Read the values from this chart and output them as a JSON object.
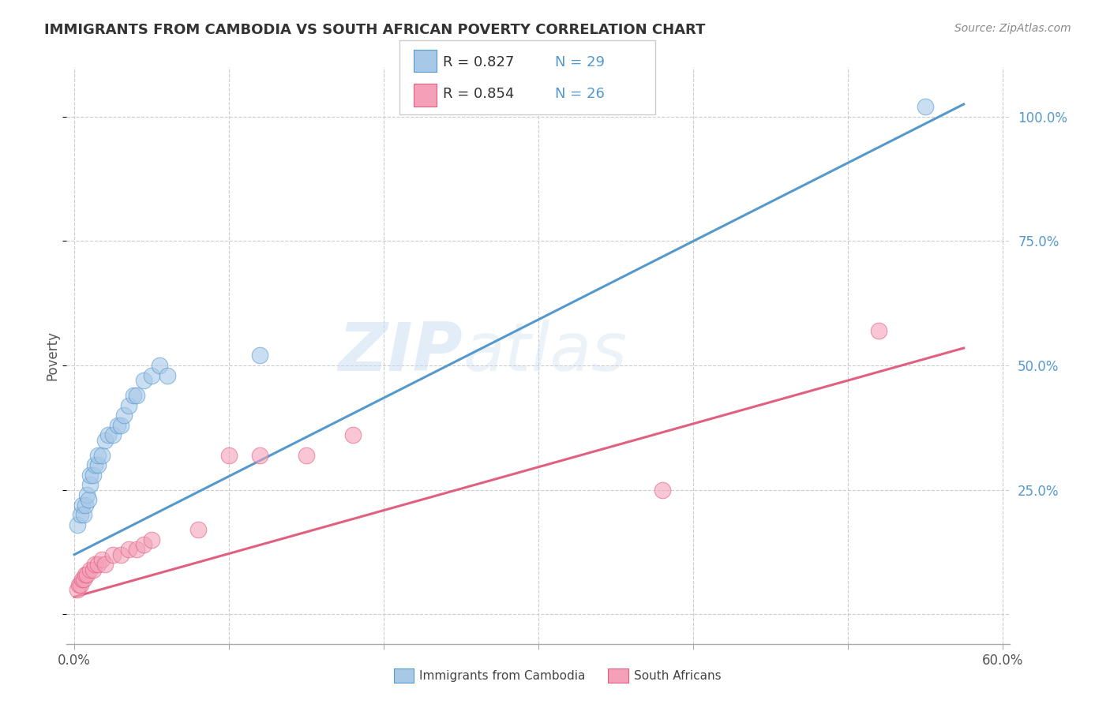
{
  "title": "IMMIGRANTS FROM CAMBODIA VS SOUTH AFRICAN POVERTY CORRELATION CHART",
  "source": "Source: ZipAtlas.com",
  "ylabel": "Poverty",
  "background_color": "#ffffff",
  "grid_color": "#cccccc",
  "watermark_zip": "ZIP",
  "watermark_atlas": "atlas",
  "blue_color": "#a8c8e8",
  "pink_color": "#f4a0b8",
  "blue_line_color": "#5599cc",
  "pink_line_color": "#e06080",
  "blue_scatter_x": [
    0.002,
    0.004,
    0.005,
    0.006,
    0.007,
    0.008,
    0.009,
    0.01,
    0.01,
    0.012,
    0.013,
    0.015,
    0.015,
    0.018,
    0.02,
    0.022,
    0.025,
    0.028,
    0.03,
    0.032,
    0.035,
    0.038,
    0.04,
    0.045,
    0.05,
    0.055,
    0.06,
    0.12,
    0.55
  ],
  "blue_scatter_y": [
    0.18,
    0.2,
    0.22,
    0.2,
    0.22,
    0.24,
    0.23,
    0.26,
    0.28,
    0.28,
    0.3,
    0.3,
    0.32,
    0.32,
    0.35,
    0.36,
    0.36,
    0.38,
    0.38,
    0.4,
    0.42,
    0.44,
    0.44,
    0.47,
    0.48,
    0.5,
    0.48,
    0.52,
    1.02
  ],
  "pink_scatter_x": [
    0.002,
    0.003,
    0.004,
    0.005,
    0.006,
    0.007,
    0.008,
    0.01,
    0.012,
    0.013,
    0.015,
    0.018,
    0.02,
    0.025,
    0.03,
    0.035,
    0.04,
    0.045,
    0.05,
    0.08,
    0.1,
    0.12,
    0.15,
    0.18,
    0.38,
    0.52
  ],
  "pink_scatter_y": [
    0.05,
    0.06,
    0.06,
    0.07,
    0.07,
    0.08,
    0.08,
    0.09,
    0.09,
    0.1,
    0.1,
    0.11,
    0.1,
    0.12,
    0.12,
    0.13,
    0.13,
    0.14,
    0.15,
    0.17,
    0.32,
    0.32,
    0.32,
    0.36,
    0.25,
    0.57
  ],
  "blue_line_x": [
    0.0,
    0.575
  ],
  "blue_line_y": [
    0.12,
    1.025
  ],
  "pink_line_x": [
    0.0,
    0.575
  ],
  "pink_line_y": [
    0.035,
    0.535
  ],
  "xlim": [
    -0.005,
    0.605
  ],
  "ylim": [
    -0.06,
    1.1
  ],
  "ytick_positions": [
    0.0,
    0.25,
    0.5,
    0.75,
    1.0
  ],
  "ytick_labels_right": [
    "",
    "25.0%",
    "50.0%",
    "75.0%",
    "100.0%"
  ],
  "xtick_positions": [
    0.0,
    0.1,
    0.2,
    0.3,
    0.4,
    0.5,
    0.6
  ],
  "legend_R1": "R = 0.827",
  "legend_N1": "N = 29",
  "legend_R2": "R = 0.854",
  "legend_N2": "N = 26",
  "legend_text_color": "#333333",
  "legend_num_color": "#5599cc",
  "right_tick_color": "#5599cc"
}
